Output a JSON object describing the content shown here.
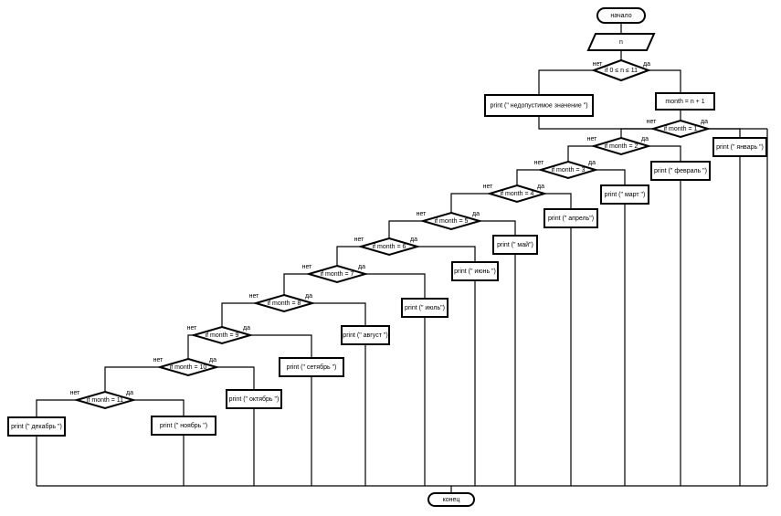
{
  "start": "начало",
  "end": "конец",
  "input": "n",
  "range_check": "if 0 ≤ n ≤ 11",
  "invalid_msg": "print (\" недопустимое значение \")",
  "assign": "month = n + 1",
  "yes": "да",
  "no": "нет",
  "conditions": [
    "if month = 1",
    "if month = 2",
    "if month = 3",
    "if month = 4",
    "if month = 5",
    "if month = 6",
    "if month = 7",
    "if month = 8",
    "if month = 9",
    "if month = 10",
    "if month  = 11"
  ],
  "months": [
    "print (\" январь \")",
    "print (\" февраль \")",
    "print (\" март \")",
    "print (\" апрель\")",
    "print (\" май\")",
    "print (\" июнь \")",
    "print (\" июль\")",
    "print (\" август \")",
    "print (\" сетябрь \")",
    "print (\" октябрь \")",
    "print (\" ноябрь \")",
    "print (\" декабрь \")"
  ]
}
